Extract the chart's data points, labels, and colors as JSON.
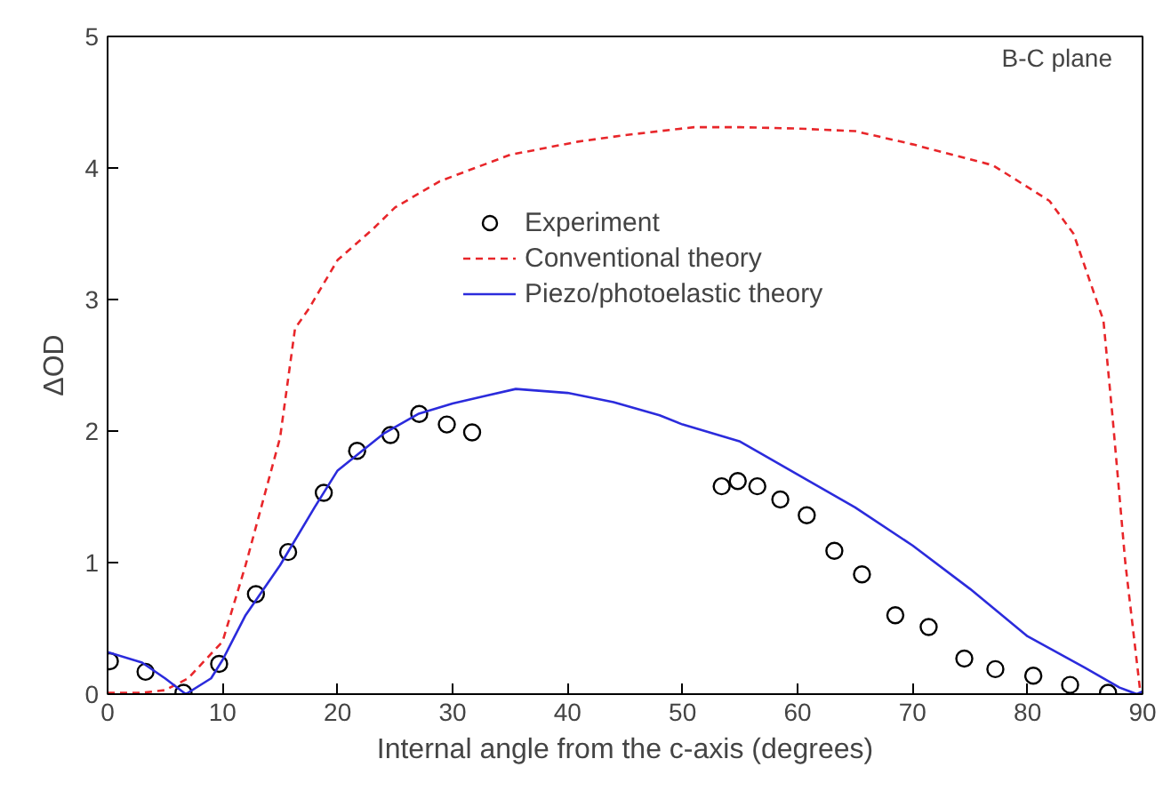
{
  "chart_data": {
    "type": "line",
    "xlabel": "Internal angle from the c-axis (degrees)",
    "ylabel": "ΔOD",
    "annotations": [
      "B-C plane"
    ],
    "xlim": [
      0,
      90
    ],
    "ylim": [
      0,
      5
    ],
    "xticks": [
      0,
      10,
      20,
      30,
      40,
      50,
      60,
      70,
      80,
      90
    ],
    "yticks": [
      0,
      1,
      2,
      3,
      4,
      5
    ],
    "grid": false,
    "legend": "top",
    "series": [
      {
        "name": "Experiment",
        "type": "scatter",
        "marker": "circle",
        "color": "#000000",
        "x": [
          0.2,
          3.3,
          6.6,
          9.7,
          12.9,
          15.7,
          18.8,
          21.7,
          24.6,
          27.1,
          29.5,
          31.7,
          53.4,
          54.8,
          56.5,
          58.5,
          60.8,
          63.2,
          65.6,
          68.5,
          71.4,
          74.5,
          77.2,
          80.5,
          83.7,
          87.0
        ],
        "values": [
          0.25,
          0.17,
          0.01,
          0.23,
          0.76,
          1.08,
          1.53,
          1.85,
          1.97,
          2.13,
          2.05,
          1.99,
          1.58,
          1.62,
          1.58,
          1.48,
          1.36,
          1.09,
          0.91,
          0.6,
          0.51,
          0.27,
          0.19,
          0.14,
          0.07,
          0.01
        ]
      },
      {
        "name": "Conventional theory",
        "line_style": "dashed",
        "color": "#e8262a",
        "x": [
          0,
          3,
          5,
          7,
          10,
          12,
          15,
          16.3,
          17.5,
          20,
          23,
          25,
          28.9,
          35,
          40.9,
          45,
          51,
          55,
          60,
          65,
          70,
          77,
          81.9,
          84,
          86.6,
          87.4,
          88.5,
          89.8
        ],
        "values": [
          0.01,
          0.01,
          0.03,
          0.12,
          0.4,
          0.98,
          1.95,
          2.78,
          2.93,
          3.3,
          3.53,
          3.7,
          3.9,
          4.1,
          4.2,
          4.25,
          4.31,
          4.31,
          4.3,
          4.28,
          4.18,
          4.02,
          3.75,
          3.5,
          2.84,
          2.1,
          1.0,
          0.02
        ]
      },
      {
        "name": "Piezo/photoelastic theory",
        "line_style": "solid",
        "color": "#2b2bdc",
        "x": [
          0,
          3,
          5,
          6.8,
          9,
          10,
          12,
          15,
          18,
          20,
          24,
          27,
          30,
          33,
          35.5,
          40,
          44,
          48,
          50,
          55,
          60,
          65,
          70,
          75,
          80,
          85,
          88,
          89.5,
          90
        ],
        "values": [
          0.32,
          0.24,
          0.12,
          0.0,
          0.12,
          0.26,
          0.6,
          0.98,
          1.42,
          1.7,
          1.98,
          2.13,
          2.21,
          2.27,
          2.32,
          2.29,
          2.22,
          2.12,
          2.05,
          1.92,
          1.67,
          1.42,
          1.13,
          0.8,
          0.44,
          0.2,
          0.05,
          0.0,
          0.02
        ]
      }
    ]
  }
}
